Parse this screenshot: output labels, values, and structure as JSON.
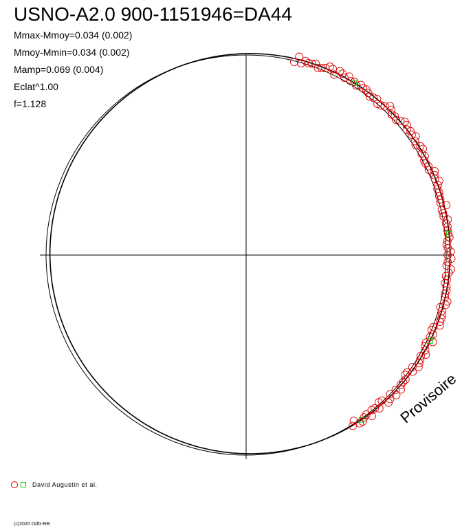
{
  "title": "USNO-A2.0 900-1151946=DA44",
  "stats": [
    "Mmax-Mmoy=0.034 (0.002)",
    "Mmoy-Mmin=0.034 (0.002)",
    "Mamp=0.069 (0.004)",
    "Eclat^1.00",
    "f=1.128"
  ],
  "watermark": "Provisoire",
  "legend": {
    "label": "David Augustin et al."
  },
  "copyright": "(c)2020 OdG-RB",
  "colors": {
    "circle_points": "#e00000",
    "square_points": "#00cc00",
    "lines": "#000000"
  },
  "chart_data": {
    "type": "scatter",
    "projection": "polar",
    "amplitude_mag": 0.069,
    "circle_points_angle_deg": [
      76,
      75,
      74,
      73,
      72,
      71,
      70,
      69,
      68,
      67,
      66,
      65,
      64,
      63,
      62,
      61,
      60,
      59,
      58,
      57,
      56,
      55,
      54,
      53,
      52,
      51,
      50,
      49,
      48,
      47,
      46,
      45,
      44,
      43,
      42,
      41,
      40,
      39,
      38,
      37,
      36,
      35,
      34,
      33,
      32,
      31,
      30,
      29,
      28,
      27,
      26,
      25,
      24,
      23,
      22,
      21,
      20,
      19,
      18,
      17,
      16,
      15,
      14,
      13,
      12,
      11,
      10,
      9,
      8,
      7,
      6,
      5,
      4,
      3,
      2,
      1,
      0,
      -1,
      -2,
      -3,
      -4,
      -5,
      -6,
      -7,
      -8,
      -9,
      -10,
      -11,
      -12,
      -13,
      -14,
      -15,
      -16,
      -17,
      -18,
      -19,
      -20,
      -21,
      -22,
      -23,
      -24,
      -25,
      -26,
      -27,
      -28,
      -29,
      -30,
      -31,
      -32,
      -33,
      -34,
      -35,
      -36,
      -37,
      -38,
      -39,
      -40,
      -41,
      -42,
      -43,
      -44,
      -45,
      -46,
      -47,
      -48,
      -49,
      -50,
      -51,
      -52,
      -53,
      -54,
      -55,
      -56,
      -57,
      -58
    ],
    "square_points_angle_deg": [
      58,
      6,
      -25,
      -55
    ]
  }
}
